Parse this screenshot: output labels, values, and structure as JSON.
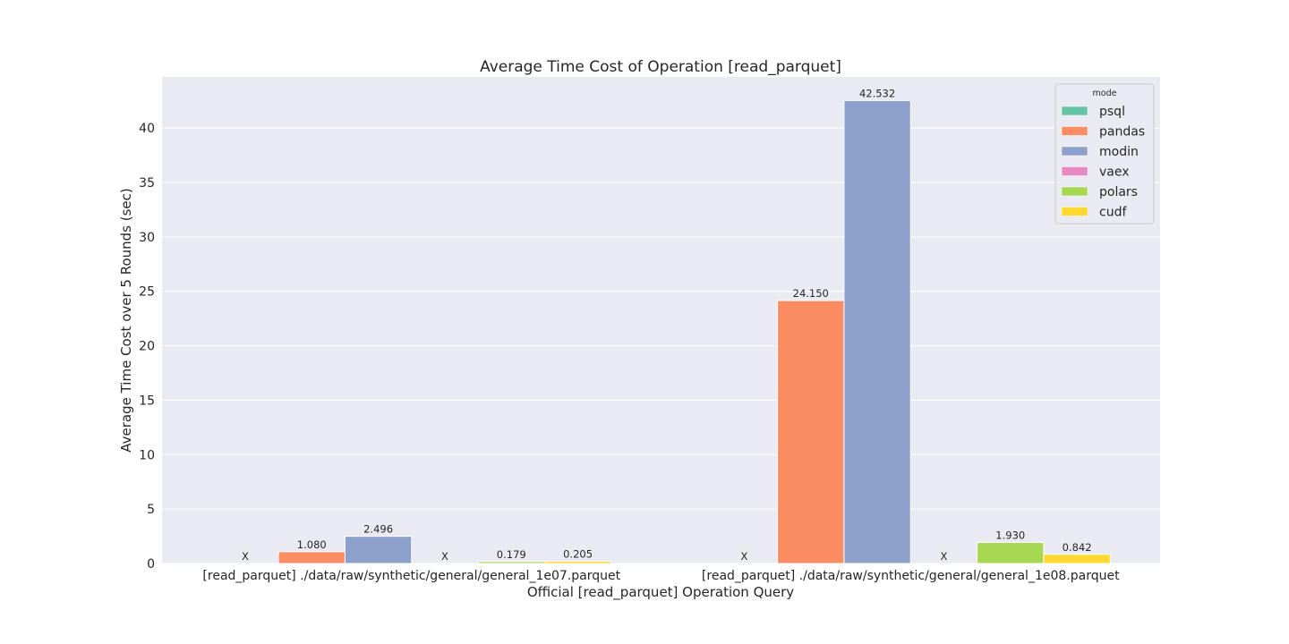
{
  "chart_data": {
    "type": "bar",
    "title": "Average Time Cost of Operation [read_parquet]",
    "xlabel": "Official [read_parquet] Operation Query",
    "ylabel": "Average Time Cost over 5 Rounds (sec)",
    "ylim": [
      0,
      44.7
    ],
    "yticks": [
      0,
      5,
      10,
      15,
      20,
      25,
      30,
      35,
      40
    ],
    "grid": true,
    "categories": [
      "[read_parquet] ./data/raw/synthetic/general/general_1e07.parquet",
      "[read_parquet] ./data/raw/synthetic/general/general_1e08.parquet"
    ],
    "series": [
      {
        "name": "psql",
        "color": "#66c2a5",
        "values": [
          null,
          null
        ],
        "labels": [
          "X",
          "X"
        ]
      },
      {
        "name": "pandas",
        "color": "#fc8d62",
        "values": [
          1.08,
          24.15
        ],
        "labels": [
          "1.080",
          "24.150"
        ]
      },
      {
        "name": "modin",
        "color": "#8da0cb",
        "values": [
          2.496,
          42.532
        ],
        "labels": [
          "2.496",
          "42.532"
        ]
      },
      {
        "name": "vaex",
        "color": "#e78ac3",
        "values": [
          null,
          null
        ],
        "labels": [
          "X",
          "X"
        ]
      },
      {
        "name": "polars",
        "color": "#a6d854",
        "values": [
          0.179,
          1.93
        ],
        "labels": [
          "0.179",
          "1.930"
        ]
      },
      {
        "name": "cudf",
        "color": "#ffd92f",
        "values": [
          0.205,
          0.842
        ],
        "labels": [
          "0.205",
          "0.842"
        ]
      }
    ],
    "legend": {
      "title": "mode",
      "placement": "top-right"
    }
  }
}
